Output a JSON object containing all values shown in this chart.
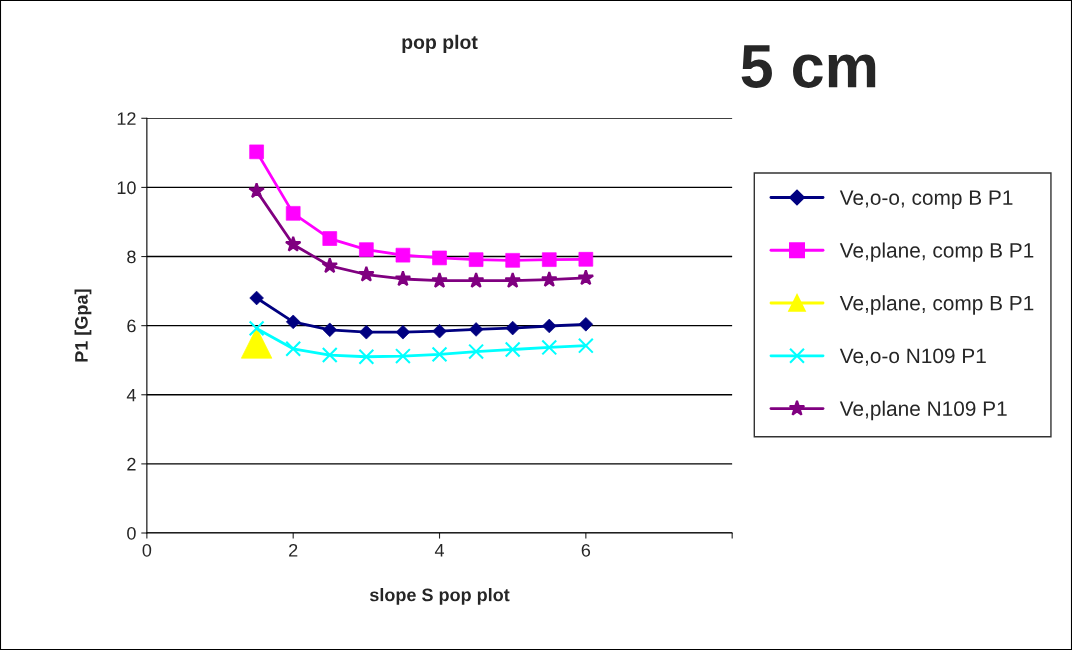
{
  "chart_data": {
    "type": "line",
    "title": "pop plot",
    "xlabel": "slope S pop plot",
    "ylabel": "P1 [Gpa]",
    "annotations": [
      "5 cm"
    ],
    "x": [
      1.5,
      2,
      2.5,
      3,
      3.5,
      4,
      4.5,
      5,
      5.5,
      6
    ],
    "series": [
      {
        "name": "Ve,o-o, comp B P1",
        "color": "#000080",
        "marker": "diamond",
        "values": [
          6.8,
          6.11,
          5.88,
          5.81,
          5.81,
          5.84,
          5.89,
          5.93,
          5.99,
          6.04
        ]
      },
      {
        "name": "Ve,plane, comp B P1",
        "color": "#ff00ff",
        "marker": "square",
        "values": [
          11.03,
          9.25,
          8.52,
          8.2,
          8.04,
          7.96,
          7.91,
          7.89,
          7.91,
          7.92
        ]
      },
      {
        "name": "Ve,plane, comp B P1",
        "color": "#ffff00",
        "marker": "triangle",
        "values": [
          5.5,
          null,
          null,
          null,
          null,
          null,
          null,
          null,
          null,
          null
        ]
      },
      {
        "name": "Ve,o-o N109 P1",
        "color": "#00ffff",
        "marker": "cross",
        "values": [
          5.92,
          5.33,
          5.15,
          5.1,
          5.12,
          5.17,
          5.25,
          5.31,
          5.37,
          5.42
        ]
      },
      {
        "name": "Ve,plane N109 P1",
        "color": "#800080",
        "marker": "star",
        "values": [
          9.9,
          8.35,
          7.73,
          7.48,
          7.35,
          7.3,
          7.3,
          7.3,
          7.33,
          7.38
        ]
      }
    ],
    "xlim": [
      0,
      8
    ],
    "xticks": [
      0,
      2,
      4,
      6,
      {
        "value": 8,
        "label": null
      }
    ],
    "ylim": [
      0,
      12
    ],
    "yticks": [
      0,
      2,
      4,
      6,
      8,
      10,
      12
    ],
    "grid": "y",
    "legend": "right",
    "line_style": "solid"
  }
}
